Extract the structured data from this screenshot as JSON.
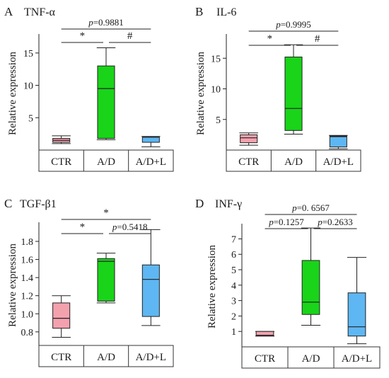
{
  "chart_data": [
    {
      "type": "box",
      "letter": "A",
      "title": "TNF-α",
      "ylabel": "Relative expression",
      "ylim": [
        0,
        17.5
      ],
      "yticks": [
        5,
        10,
        15
      ],
      "categories": [
        "CTR",
        "A/D",
        "A/D+L"
      ],
      "colors": [
        "#f4a1ae",
        "#19d419",
        "#5eb7f2"
      ],
      "boxes": [
        {
          "min": 1.0,
          "q1": 1.2,
          "median": 1.5,
          "q3": 1.8,
          "max": 2.2
        },
        {
          "min": 1.6,
          "q1": 1.8,
          "median": 9.5,
          "q3": 13.0,
          "max": 15.8
        },
        {
          "min": 0.5,
          "q1": 1.2,
          "median": 2.0,
          "q3": 2.0,
          "max": 2.1
        }
      ],
      "comparisons": [
        {
          "from": 0,
          "to": 2,
          "label": "p=0.9881",
          "level": 2
        },
        {
          "from": 0,
          "to": 1,
          "label": "*",
          "level": 1
        },
        {
          "from": 1,
          "to": 2,
          "label": "#",
          "level": 1
        }
      ]
    },
    {
      "type": "box",
      "letter": "B",
      "title": "IL-6",
      "ylabel": "Relative expression",
      "ylim": [
        0,
        18.5
      ],
      "yticks": [
        5,
        10,
        15
      ],
      "categories": [
        "CTR",
        "A/D",
        "A/D+L"
      ],
      "colors": [
        "#f4a1ae",
        "#19d419",
        "#5eb7f2"
      ],
      "boxes": [
        {
          "min": 0.8,
          "q1": 1.2,
          "median": 2.0,
          "q3": 2.5,
          "max": 2.8
        },
        {
          "min": 2.6,
          "q1": 3.2,
          "median": 6.8,
          "q3": 15.2,
          "max": 17.2
        },
        {
          "min": 0.2,
          "q1": 0.5,
          "median": 2.2,
          "q3": 2.3,
          "max": 2.4
        }
      ],
      "comparisons": [
        {
          "from": 0,
          "to": 2,
          "label": "p=0.9995",
          "level": 2
        },
        {
          "from": 0,
          "to": 1,
          "label": "*",
          "level": 1
        },
        {
          "from": 1,
          "to": 2,
          "label": "#",
          "level": 1
        }
      ]
    },
    {
      "type": "box",
      "letter": "C",
      "title": "TGF-β1",
      "ylabel": "Relative expression",
      "ylim": [
        0.65,
        1.98
      ],
      "yticks": [
        0.8,
        1.0,
        1.2,
        1.4,
        1.6,
        1.8
      ],
      "tickdecimals": 1,
      "categories": [
        "CTR",
        "A/D",
        "A/D+L"
      ],
      "colors": [
        "#f4a1ae",
        "#19d419",
        "#5eb7f2"
      ],
      "boxes": [
        {
          "min": 0.74,
          "q1": 0.84,
          "median": 0.95,
          "q3": 1.12,
          "max": 1.2
        },
        {
          "min": 1.12,
          "q1": 1.14,
          "median": 1.58,
          "q3": 1.61,
          "max": 1.67
        },
        {
          "min": 0.87,
          "q1": 0.97,
          "median": 1.38,
          "q3": 1.54,
          "max": 1.93
        }
      ],
      "comparisons": [
        {
          "from": 0,
          "to": 2,
          "label": "*",
          "level": 2
        },
        {
          "from": 0,
          "to": 1,
          "label": "*",
          "level": 1
        },
        {
          "from": 1,
          "to": 2,
          "label": "p=0.5418",
          "level": 1
        }
      ]
    },
    {
      "type": "box",
      "letter": "D",
      "title": "INF-γ",
      "ylabel": "Relative expression",
      "ylim": [
        0,
        7.8
      ],
      "yticks": [
        1,
        2,
        3,
        4,
        5,
        6,
        7
      ],
      "categories": [
        "CTR",
        "A/D",
        "A/D+L"
      ],
      "colors": [
        "#f4a1ae",
        "#19d419",
        "#5eb7f2"
      ],
      "boxes": [
        {
          "min": 0.7,
          "q1": 0.7,
          "median": 0.75,
          "q3": 1.0,
          "max": 1.0
        },
        {
          "min": 1.4,
          "q1": 2.1,
          "median": 2.9,
          "q3": 5.6,
          "max": 7.7
        },
        {
          "min": 0.2,
          "q1": 0.7,
          "median": 1.3,
          "q3": 3.5,
          "max": 5.8
        }
      ],
      "comparisons": [
        {
          "from": 0,
          "to": 2,
          "label": "p=0. 6567",
          "level": 2
        },
        {
          "from": 0,
          "to": 1,
          "label": "p=0.1257",
          "level": 1
        },
        {
          "from": 1,
          "to": 2,
          "label": "p=0.2633",
          "level": 1
        }
      ]
    }
  ]
}
